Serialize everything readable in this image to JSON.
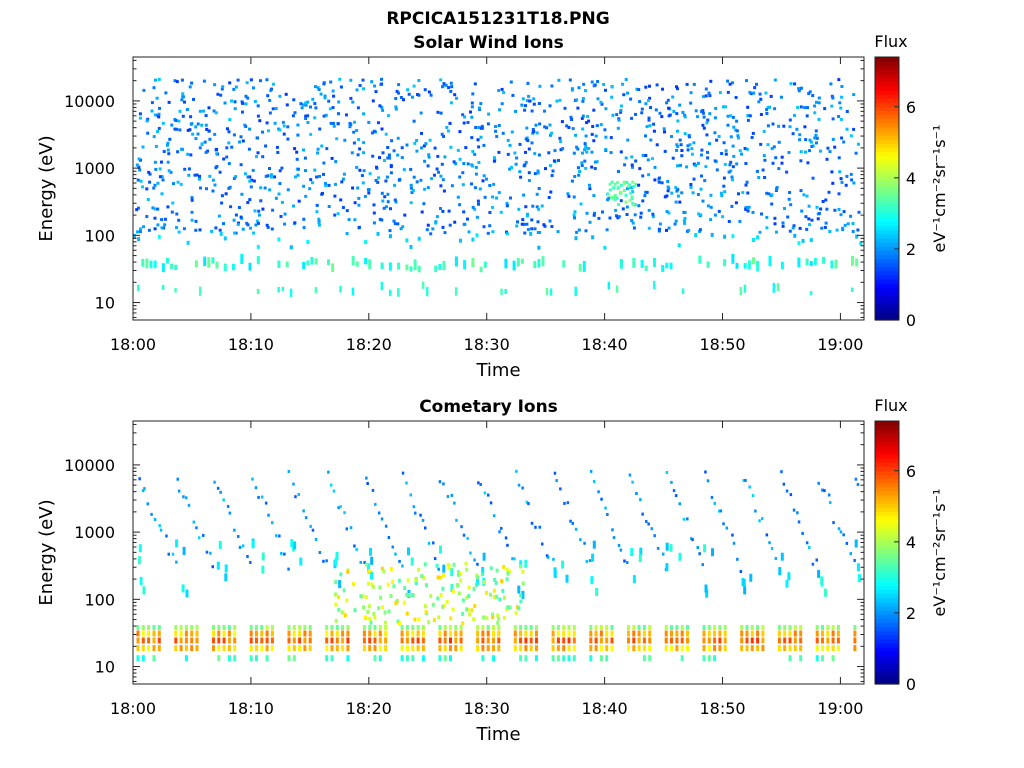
{
  "figure_title": "RPCICA151231T18.PNG",
  "chart_data": [
    {
      "type": "heatmap",
      "title": "Solar Wind Ions",
      "xlabel": "Time",
      "ylabel": "Energy (eV)",
      "x_ticks": [
        "18:00",
        "18:10",
        "18:20",
        "18:30",
        "18:40",
        "18:50",
        "19:00"
      ],
      "x_range_minutes": [
        0,
        62
      ],
      "y_ticks": [
        "10",
        "100",
        "1000",
        "10000"
      ],
      "y_tick_values": [
        10,
        100,
        1000,
        10000
      ],
      "y_scale": "log",
      "y_range_eV": [
        5.5,
        45000
      ],
      "colorbar": {
        "title": "Flux",
        "label": "eV⁻¹cm⁻²sr⁻¹s⁻¹",
        "ticks": [
          "0",
          "2",
          "4",
          "6"
        ],
        "range": [
          0,
          7.4
        ],
        "colormap": "jet"
      },
      "features": [
        {
          "energy_eV": [
            100,
            20000
          ],
          "flux_log": [
            1.4,
            2.3
          ],
          "note": "sparse scattered counts"
        },
        {
          "energy_eV": [
            15,
            40
          ],
          "flux_log": [
            2.5,
            3.6
          ],
          "note": "low-energy band"
        },
        {
          "energy_eV": [
            250,
            600
          ],
          "time_min": [
            40,
            42
          ],
          "flux_log": [
            3.0,
            3.8
          ]
        }
      ]
    },
    {
      "type": "heatmap",
      "title": "Cometary Ions",
      "xlabel": "Time",
      "ylabel": "Energy (eV)",
      "x_ticks": [
        "18:00",
        "18:10",
        "18:20",
        "18:30",
        "18:40",
        "18:50",
        "19:00"
      ],
      "x_range_minutes": [
        0,
        62
      ],
      "y_ticks": [
        "10",
        "100",
        "1000",
        "10000"
      ],
      "y_tick_values": [
        10,
        100,
        1000,
        10000
      ],
      "y_scale": "log",
      "y_range_eV": [
        5.5,
        45000
      ],
      "colorbar": {
        "title": "Flux",
        "label": "eV⁻¹cm⁻²sr⁻¹s⁻¹",
        "ticks": [
          "0",
          "2",
          "4",
          "6"
        ],
        "range": [
          0,
          7.4
        ],
        "colormap": "jet"
      },
      "features": [
        {
          "energy_eV": [
            15,
            35
          ],
          "flux_log": [
            4.5,
            6.2
          ],
          "note": "recurring bursts about every 3.2 min"
        },
        {
          "energy_eV": [
            150,
            8000
          ],
          "flux_log": [
            1.5,
            3.0
          ],
          "note": "descending dispersed streaks"
        },
        {
          "energy_eV": [
            40,
            300
          ],
          "time_min": [
            17,
            33
          ],
          "flux_log": [
            3.5,
            5.0
          ]
        }
      ]
    }
  ]
}
